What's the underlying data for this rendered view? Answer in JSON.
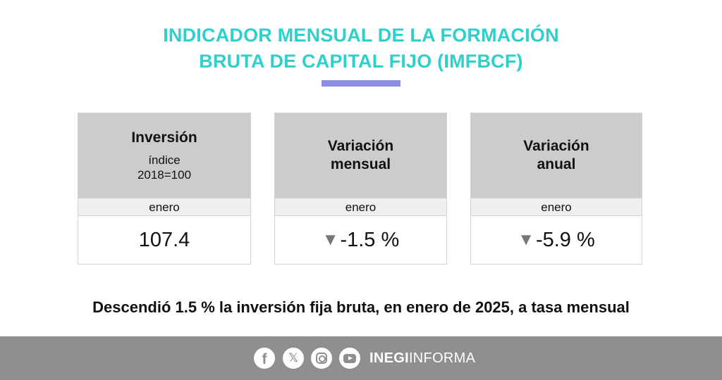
{
  "header": {
    "title_line1": "INDICADOR MENSUAL DE LA FORMACIÓN",
    "title_line2": "BRUTA DE CAPITAL FIJO (IMFBCF)"
  },
  "cards": [
    {
      "heading": "Inversión",
      "sub1": "índice",
      "sub2": "2018=100",
      "month": "enero",
      "value": "107.4",
      "trend": ""
    },
    {
      "heading1": "Variación",
      "heading2": "mensual",
      "month": "enero",
      "value": "-1.5 %",
      "trend": "▼"
    },
    {
      "heading1": "Variación",
      "heading2": "anual",
      "month": "enero",
      "value": "-5.9 %",
      "trend": "▼"
    }
  ],
  "headline": "Descendió 1.5 % la inversión fija bruta, en enero de 2025, a tasa mensual",
  "footer": {
    "icons": [
      "facebook-icon",
      "x-icon",
      "instagram-icon",
      "youtube-icon"
    ],
    "brand_bold": "INEGI",
    "brand_regular": "INFORMA"
  },
  "colors": {
    "title": "#2fd0cc",
    "accent_bar": "#8b8be8",
    "card_head": "#cccccc",
    "footer": "#8f8f8f"
  }
}
